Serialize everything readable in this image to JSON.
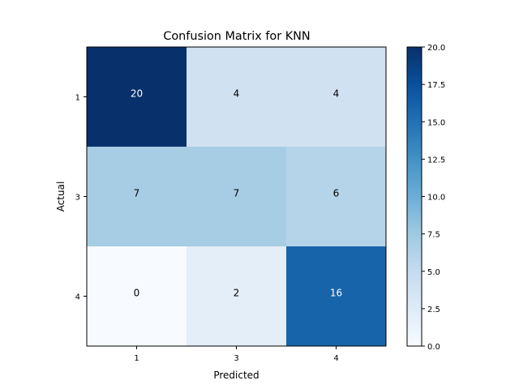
{
  "chart_data": {
    "type": "heatmap",
    "title": "Confusion Matrix for KNN",
    "xlabel": "Predicted",
    "ylabel": "Actual",
    "x_categories": [
      "1",
      "3",
      "4"
    ],
    "y_categories": [
      "1",
      "3",
      "4"
    ],
    "values": [
      [
        20,
        4,
        4
      ],
      [
        7,
        7,
        6
      ],
      [
        0,
        2,
        16
      ]
    ],
    "colormap": "Blues",
    "vmin": 0,
    "vmax": 20,
    "colorbar_ticks": [
      "0.0",
      "2.5",
      "5.0",
      "7.5",
      "10.0",
      "12.5",
      "15.0",
      "17.5",
      "20.0"
    ],
    "colorbar_tick_values": [
      0,
      2.5,
      5,
      7.5,
      10,
      12.5,
      15,
      17.5,
      20
    ],
    "grid": false
  }
}
